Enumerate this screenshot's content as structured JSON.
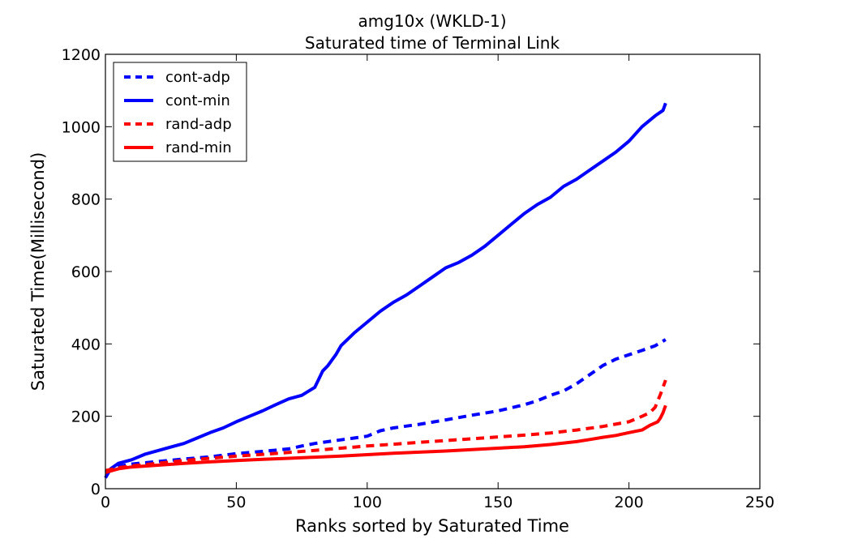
{
  "chart_data": {
    "type": "line",
    "title": "amg10x  (WKLD-1)",
    "subtitle": "Saturated time of Terminal Link",
    "xlabel": "Ranks sorted by Saturated Time",
    "ylabel": "Saturated Time(Millisecond)",
    "xlim": [
      0,
      250
    ],
    "ylim": [
      0,
      1200
    ],
    "xticks": [
      0,
      50,
      100,
      150,
      200,
      250
    ],
    "yticks": [
      0,
      200,
      400,
      600,
      800,
      1000,
      1200
    ],
    "grid": false,
    "legend_position": "top-left",
    "series": [
      {
        "name": "cont-adp",
        "color": "#0000ff",
        "style": "dashed",
        "x": [
          0,
          5,
          10,
          20,
          30,
          40,
          50,
          60,
          70,
          75,
          80,
          90,
          100,
          105,
          110,
          120,
          130,
          140,
          150,
          160,
          165,
          170,
          175,
          180,
          185,
          190,
          195,
          200,
          205,
          210,
          214
        ],
        "y": [
          45,
          62,
          68,
          75,
          82,
          88,
          97,
          103,
          110,
          118,
          125,
          135,
          145,
          160,
          168,
          178,
          190,
          203,
          215,
          232,
          243,
          258,
          270,
          290,
          315,
          340,
          358,
          370,
          382,
          395,
          412
        ]
      },
      {
        "name": "cont-min",
        "color": "#0000ff",
        "style": "solid",
        "x": [
          0,
          2,
          5,
          10,
          15,
          20,
          25,
          30,
          35,
          40,
          45,
          50,
          55,
          60,
          65,
          70,
          75,
          80,
          82,
          83,
          85,
          88,
          90,
          95,
          100,
          105,
          110,
          115,
          120,
          125,
          130,
          135,
          140,
          145,
          150,
          155,
          160,
          165,
          170,
          175,
          180,
          185,
          190,
          195,
          200,
          205,
          210,
          213,
          214
        ],
        "y": [
          30,
          55,
          70,
          80,
          95,
          105,
          115,
          125,
          140,
          155,
          168,
          185,
          200,
          215,
          232,
          248,
          258,
          280,
          310,
          325,
          340,
          370,
          395,
          430,
          460,
          490,
          515,
          535,
          560,
          585,
          610,
          625,
          645,
          670,
          700,
          730,
          760,
          785,
          805,
          835,
          855,
          880,
          905,
          930,
          960,
          1000,
          1030,
          1045,
          1065
        ]
      },
      {
        "name": "rand-adp",
        "color": "#ff0000",
        "style": "dashed",
        "x": [
          0,
          5,
          10,
          20,
          30,
          40,
          50,
          60,
          70,
          80,
          90,
          100,
          110,
          120,
          130,
          140,
          150,
          160,
          170,
          180,
          190,
          200,
          205,
          208,
          210,
          212,
          214
        ],
        "y": [
          50,
          58,
          63,
          70,
          78,
          84,
          90,
          95,
          100,
          106,
          112,
          118,
          123,
          128,
          133,
          138,
          143,
          148,
          154,
          162,
          172,
          185,
          200,
          210,
          225,
          260,
          300
        ]
      },
      {
        "name": "rand-min",
        "color": "#ff0000",
        "style": "solid",
        "x": [
          0,
          5,
          10,
          20,
          30,
          40,
          50,
          60,
          70,
          80,
          90,
          100,
          110,
          120,
          130,
          140,
          150,
          160,
          170,
          180,
          185,
          190,
          195,
          200,
          205,
          208,
          211,
          212,
          213,
          214
        ],
        "y": [
          45,
          55,
          60,
          65,
          70,
          74,
          78,
          81,
          84,
          87,
          90,
          94,
          98,
          101,
          104,
          108,
          112,
          116,
          122,
          130,
          136,
          142,
          147,
          155,
          162,
          175,
          185,
          195,
          210,
          230
        ]
      }
    ]
  }
}
